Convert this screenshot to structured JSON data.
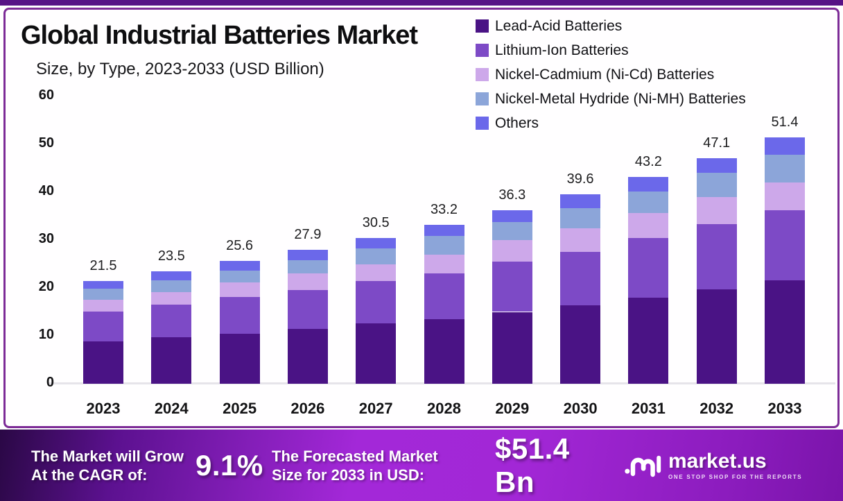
{
  "header": {
    "title": "Global Industrial Batteries Market",
    "subtitle": "Size, by Type, 2023-2033 (USD Billion)"
  },
  "chart_data": {
    "type": "bar",
    "stacked": true,
    "title": "Global Industrial Batteries Market Size, by Type, 2023-2033 (USD Billion)",
    "categories": [
      "2023",
      "2024",
      "2025",
      "2026",
      "2027",
      "2028",
      "2029",
      "2030",
      "2031",
      "2032",
      "2033"
    ],
    "totals": [
      21.5,
      23.5,
      25.6,
      27.9,
      30.5,
      33.2,
      36.3,
      39.6,
      43.2,
      47.1,
      51.4
    ],
    "series": [
      {
        "name": "Lead-Acid Batteries",
        "color": "#4a1385",
        "values": [
          8.9,
          9.7,
          10.5,
          11.4,
          12.6,
          13.5,
          15.0,
          16.4,
          18.0,
          19.7,
          21.6
        ]
      },
      {
        "name": "Lithium-Ion Batteries",
        "color": "#7d4ac6",
        "values": [
          6.2,
          6.8,
          7.6,
          8.2,
          8.8,
          9.5,
          10.5,
          11.2,
          12.4,
          13.7,
          14.6
        ]
      },
      {
        "name": "Nickel-Cadmium (Ni-Cd) Batteries",
        "color": "#cda8ea",
        "values": [
          2.4,
          2.7,
          3.0,
          3.4,
          3.5,
          4.0,
          4.5,
          4.8,
          5.3,
          5.6,
          5.9
        ]
      },
      {
        "name": "Nickel-Metal Hydride (Ni-MH) Batteries",
        "color": "#8ca5d9",
        "values": [
          2.4,
          2.4,
          2.5,
          2.8,
          3.3,
          3.9,
          3.7,
          4.3,
          4.5,
          5.1,
          5.7
        ]
      },
      {
        "name": "Others",
        "color": "#6b68ea",
        "values": [
          1.6,
          1.9,
          2.0,
          2.1,
          2.3,
          2.3,
          2.6,
          2.9,
          3.0,
          3.0,
          3.6
        ]
      }
    ],
    "yticks": [
      0,
      10,
      20,
      30,
      40,
      50,
      60
    ],
    "ylim": [
      0,
      60
    ],
    "xlabel": "",
    "ylabel": "",
    "grid": false,
    "legend_position": "top-right"
  },
  "footer": {
    "cagr_label_line1": "The Market will Grow",
    "cagr_label_line2": "At the CAGR of:",
    "cagr_value": "9.1%",
    "forecast_label_line1": "The Forecasted Market",
    "forecast_label_line2": "Size for 2033 in USD:",
    "forecast_value": "$51.4 Bn",
    "brand_name": "market.us",
    "brand_tagline": "ONE STOP SHOP FOR THE REPORTS"
  },
  "colors": {
    "top_strip": "#571286",
    "card_border": "#7d2b97",
    "footer_gradient_mid": "#a328d8"
  }
}
